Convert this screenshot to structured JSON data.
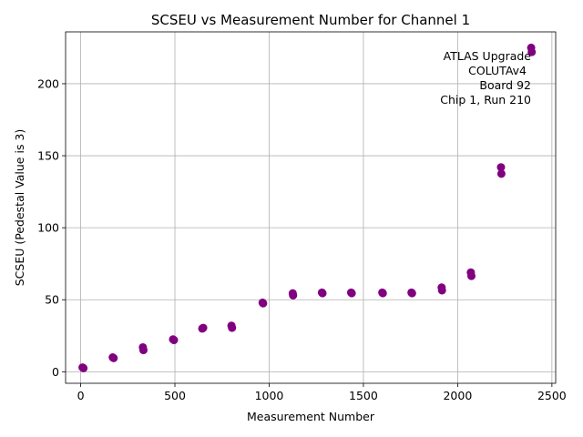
{
  "chart_data": {
    "type": "scatter",
    "title": "SCSEU vs Measurement Number for Channel 1",
    "xlabel": "Measurement Number",
    "ylabel": "SCSEU (Pedestal Value is 3)",
    "xlim": [
      -80,
      2520
    ],
    "ylim": [
      -8,
      236
    ],
    "xticks": [
      0,
      500,
      1000,
      1500,
      2000,
      2500
    ],
    "yticks": [
      0,
      50,
      100,
      150,
      200
    ],
    "grid": true,
    "marker_color": "#800080",
    "annotation": [
      "ATLAS Upgrade",
      "COLUTAv4",
      "Board 92",
      "Chip 1, Run 210"
    ],
    "annotation_placement": "top-right",
    "points": [
      {
        "x": 10,
        "y": 3
      },
      {
        "x": 15,
        "y": 2.5
      },
      {
        "x": 170,
        "y": 10
      },
      {
        "x": 175,
        "y": 9.5
      },
      {
        "x": 330,
        "y": 17
      },
      {
        "x": 333,
        "y": 15
      },
      {
        "x": 490,
        "y": 22.5
      },
      {
        "x": 495,
        "y": 22
      },
      {
        "x": 645,
        "y": 30
      },
      {
        "x": 650,
        "y": 30.5
      },
      {
        "x": 800,
        "y": 32
      },
      {
        "x": 803,
        "y": 30.5
      },
      {
        "x": 965,
        "y": 48
      },
      {
        "x": 968,
        "y": 47.5
      },
      {
        "x": 1125,
        "y": 54.5
      },
      {
        "x": 1127,
        "y": 53
      },
      {
        "x": 1280,
        "y": 55
      },
      {
        "x": 1283,
        "y": 54.5
      },
      {
        "x": 1435,
        "y": 55
      },
      {
        "x": 1438,
        "y": 54.5
      },
      {
        "x": 1600,
        "y": 55
      },
      {
        "x": 1603,
        "y": 54.5
      },
      {
        "x": 1755,
        "y": 55
      },
      {
        "x": 1758,
        "y": 54.5
      },
      {
        "x": 1915,
        "y": 58.5
      },
      {
        "x": 1917,
        "y": 56.5
      },
      {
        "x": 2070,
        "y": 69
      },
      {
        "x": 2073,
        "y": 66.5
      },
      {
        "x": 2230,
        "y": 142
      },
      {
        "x": 2232,
        "y": 137.5
      },
      {
        "x": 2390,
        "y": 225
      },
      {
        "x": 2393,
        "y": 222
      }
    ]
  }
}
